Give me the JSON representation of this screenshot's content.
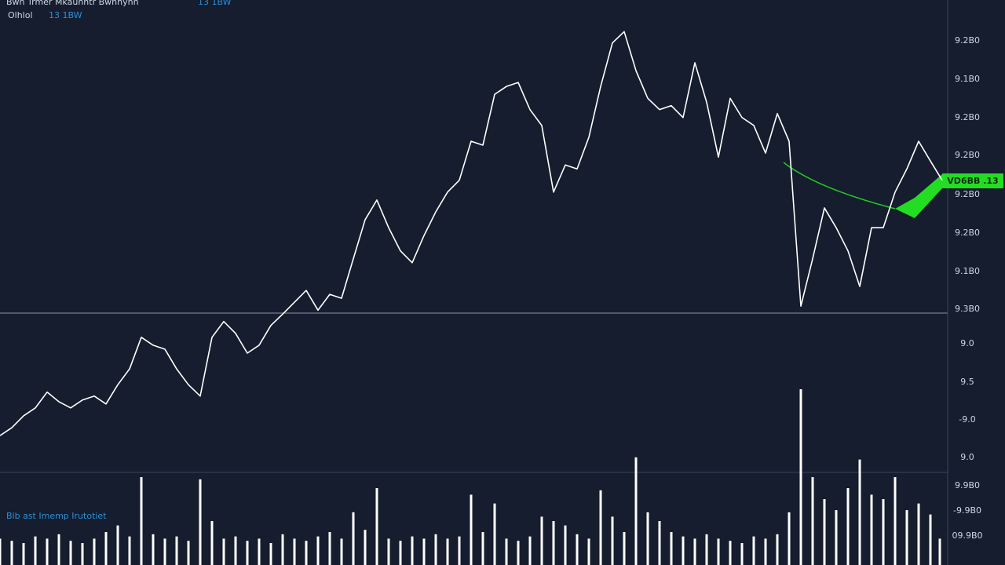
{
  "header": {
    "title": "Bwn Trmer Mkaunntr Bwnhynh",
    "change": "13 1BW",
    "interval": "Olhlol",
    "interval_change": "13 1BW"
  },
  "indicator_label": "Blb ast Imemp Irutotiet",
  "price_tag": "VD6BB .13",
  "axis_labels": [
    "9.2B0",
    "9.1B0",
    "9.2B0",
    "9.2B0",
    "9.2B0",
    "9.2B0",
    "9.1B0",
    "9.3B0",
    "9.0",
    "9.5",
    "-9.0",
    "9.0",
    "9.9B0",
    "-9.9B0",
    "09.9B0"
  ],
  "chart_data": [
    {
      "type": "line",
      "color": "#ffffff",
      "xlim": [
        0,
        1200
      ],
      "ylim": [
        0,
        100
      ],
      "x": [
        0,
        15,
        30,
        45,
        60,
        75,
        90,
        105,
        120,
        135,
        150,
        165,
        180,
        195,
        210,
        225,
        240,
        255,
        270,
        285,
        300,
        315,
        330,
        345,
        360,
        375,
        390,
        405,
        420,
        435,
        450,
        465,
        480,
        495,
        510,
        525,
        540,
        555,
        570,
        585,
        600,
        615,
        630,
        645,
        660,
        675,
        690,
        705,
        720,
        735,
        750,
        765,
        780,
        795,
        810,
        825,
        840,
        855,
        870,
        885,
        900,
        915,
        930,
        945,
        960,
        975,
        990,
        1005,
        1020,
        1035,
        1050,
        1065,
        1080,
        1095,
        1110,
        1125,
        1140,
        1155,
        1170,
        1185,
        1200
      ],
      "values": [
        22.9,
        24.3,
        26.4,
        27.8,
        30.6,
        28.9,
        27.8,
        29.2,
        29.9,
        28.5,
        31.9,
        34.7,
        40.3,
        38.9,
        38.2,
        34.7,
        31.9,
        29.9,
        40.3,
        43.1,
        41.0,
        37.5,
        38.9,
        42.4,
        44.4,
        46.5,
        48.6,
        45.1,
        47.9,
        47.2,
        54.2,
        61.1,
        64.6,
        59.7,
        55.6,
        53.5,
        58.3,
        62.5,
        66.0,
        68.1,
        75.0,
        74.3,
        83.3,
        84.7,
        85.4,
        80.6,
        77.8,
        66.0,
        70.8,
        70.1,
        75.7,
        84.7,
        92.4,
        94.4,
        87.5,
        82.6,
        80.6,
        81.3,
        79.2,
        88.9,
        81.9,
        72.2,
        82.6,
        79.2,
        77.8,
        72.9,
        79.9,
        75.0,
        45.8,
        54.2,
        63.2,
        59.7,
        55.6,
        49.3,
        59.7,
        59.7,
        66.0,
        70.1,
        75.0,
        71.5,
        68.1
      ]
    },
    {
      "type": "bar",
      "color": "#ffffff",
      "xlim": [
        0,
        1200
      ],
      "ylim": [
        0,
        100
      ],
      "x": [
        0,
        15,
        30,
        45,
        60,
        75,
        90,
        105,
        120,
        135,
        150,
        165,
        180,
        195,
        210,
        225,
        240,
        255,
        270,
        285,
        300,
        315,
        330,
        345,
        360,
        375,
        390,
        405,
        420,
        435,
        450,
        465,
        480,
        495,
        510,
        525,
        540,
        555,
        570,
        585,
        600,
        615,
        630,
        645,
        660,
        675,
        690,
        705,
        720,
        735,
        750,
        765,
        780,
        795,
        810,
        825,
        840,
        855,
        870,
        885,
        900,
        915,
        930,
        945,
        960,
        975,
        990,
        1005,
        1020,
        1035,
        1050,
        1065,
        1080,
        1095,
        1110,
        1125,
        1140,
        1155,
        1170,
        1185,
        1200
      ],
      "values": [
        12,
        11,
        10,
        13,
        12,
        14,
        11,
        10,
        12,
        15,
        18,
        13,
        40,
        14,
        12,
        13,
        11,
        39,
        20,
        12,
        13,
        11,
        12,
        10,
        14,
        12,
        11,
        13,
        15,
        12,
        24,
        16,
        35,
        12,
        11,
        13,
        12,
        14,
        12,
        13,
        32,
        15,
        28,
        12,
        11,
        13,
        22,
        20,
        18,
        14,
        12,
        34,
        22,
        15,
        49,
        24,
        20,
        15,
        13,
        12,
        14,
        12,
        11,
        10,
        13,
        12,
        14,
        24,
        80,
        40,
        30,
        25,
        35,
        48,
        32,
        30,
        40,
        25,
        28,
        23,
        12
      ]
    }
  ]
}
